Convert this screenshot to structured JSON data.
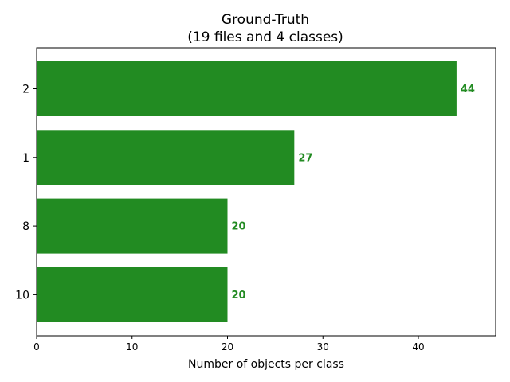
{
  "chart_data": {
    "type": "bar",
    "orientation": "horizontal",
    "title": "Ground-Truth",
    "subtitle": "(19 files and 4 classes)",
    "xlabel": "Number of objects per class",
    "ylabel": "",
    "categories": [
      "2",
      "1",
      "8",
      "10"
    ],
    "values": [
      44,
      27,
      20,
      20
    ],
    "data_labels": [
      "44",
      "27",
      "20",
      "20"
    ],
    "xlim": [
      0,
      48.1
    ],
    "xticks": [
      0,
      10,
      20,
      30,
      40
    ],
    "xtick_labels": [
      "0",
      "10",
      "20",
      "30",
      "40"
    ],
    "grid": false,
    "bar_color": "#228b22",
    "label_color": "#228b22"
  }
}
